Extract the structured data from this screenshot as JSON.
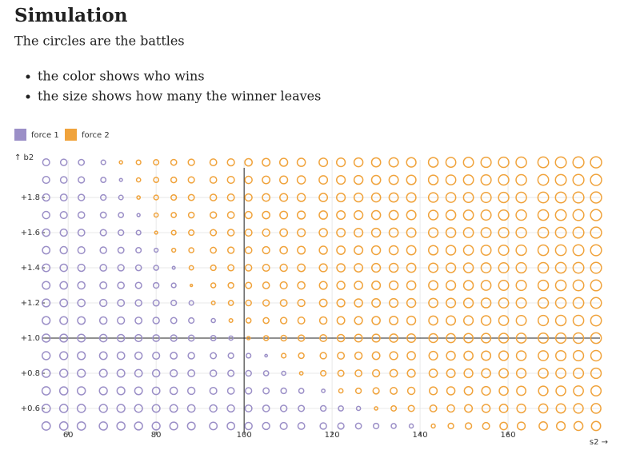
{
  "header": {
    "title": "Simulation",
    "subtitle": "The circles are the battles",
    "bullets": [
      "the color shows who wins",
      "the size shows how many the winner leaves"
    ]
  },
  "chart_data": {
    "type": "scatter",
    "x_label": "s2 →",
    "y_label": "↑ b2",
    "series": [
      {
        "name": "force 1",
        "color": "#9b8fc7"
      },
      {
        "name": "force 2",
        "color": "#f0a33c"
      }
    ],
    "x": [
      55,
      59,
      63,
      68,
      72,
      76,
      80,
      84,
      88,
      93,
      97,
      101,
      105,
      109,
      113,
      118,
      122,
      126,
      130,
      134,
      138,
      143,
      147,
      151,
      155,
      159,
      163,
      168,
      172,
      176,
      180
    ],
    "rows": [
      {
        "b2": 0.5,
        "winner": [
          1,
          1,
          1,
          1,
          1,
          1,
          1,
          1,
          1,
          1,
          1,
          1,
          1,
          1,
          1,
          1,
          1,
          1,
          1,
          1,
          1,
          2,
          2,
          2,
          2,
          2,
          2,
          2,
          2,
          2,
          2
        ],
        "left": [
          92,
          91,
          90,
          88,
          86,
          84,
          82,
          80,
          78,
          75,
          73,
          70,
          67,
          64,
          60,
          55,
          51,
          45,
          39,
          32,
          22,
          21,
          40,
          53,
          63,
          73,
          81,
          91,
          98,
          105,
          111
        ]
      },
      {
        "b2": 0.6,
        "winner": [
          1,
          1,
          1,
          1,
          1,
          1,
          1,
          1,
          1,
          1,
          1,
          1,
          1,
          1,
          1,
          1,
          1,
          1,
          2,
          2,
          2,
          2,
          2,
          2,
          2,
          2,
          2,
          2,
          2,
          2,
          2
        ],
        "left": [
          90,
          89,
          87,
          85,
          83,
          81,
          78,
          76,
          73,
          69,
          66,
          62,
          58,
          54,
          48,
          41,
          33,
          22,
          15,
          36,
          49,
          61,
          70,
          78,
          86,
          93,
          100,
          108,
          114,
          120,
          125
        ]
      },
      {
        "b2": 0.7,
        "winner": [
          1,
          1,
          1,
          1,
          1,
          1,
          1,
          1,
          1,
          1,
          1,
          1,
          1,
          1,
          1,
          1,
          2,
          2,
          2,
          2,
          2,
          2,
          2,
          2,
          2,
          2,
          2,
          2,
          2,
          2,
          2
        ],
        "left": [
          89,
          87,
          85,
          82,
          80,
          77,
          74,
          71,
          68,
          63,
          58,
          53,
          48,
          41,
          33,
          16,
          24,
          40,
          51,
          61,
          69,
          79,
          86,
          92,
          99,
          105,
          111,
          118,
          124,
          129,
          135
        ]
      },
      {
        "b2": 0.8,
        "winner": [
          1,
          1,
          1,
          1,
          1,
          1,
          1,
          1,
          1,
          1,
          1,
          1,
          1,
          1,
          2,
          2,
          2,
          2,
          2,
          2,
          2,
          2,
          2,
          2,
          2,
          2,
          2,
          2,
          2,
          2,
          2
        ],
        "left": [
          87,
          85,
          83,
          79,
          77,
          73,
          70,
          66,
          62,
          56,
          50,
          43,
          34,
          22,
          16,
          38,
          49,
          58,
          66,
          74,
          81,
          89,
          95,
          101,
          107,
          113,
          119,
          125,
          131,
          136,
          141
        ]
      },
      {
        "b2": 0.9,
        "winner": [
          1,
          1,
          1,
          1,
          1,
          1,
          1,
          1,
          1,
          1,
          1,
          1,
          1,
          2,
          2,
          2,
          2,
          2,
          2,
          2,
          2,
          2,
          2,
          2,
          2,
          2,
          2,
          2,
          2,
          2,
          2
        ],
        "left": [
          85,
          83,
          80,
          76,
          73,
          69,
          65,
          60,
          55,
          47,
          39,
          29,
          9,
          28,
          41,
          53,
          61,
          69,
          76,
          83,
          89,
          97,
          102,
          108,
          114,
          119,
          124,
          131,
          136,
          141,
          146
        ]
      },
      {
        "b2": 1.0,
        "winner": [
          1,
          1,
          1,
          1,
          1,
          1,
          1,
          1,
          1,
          1,
          1,
          2,
          2,
          2,
          2,
          2,
          2,
          2,
          2,
          2,
          2,
          2,
          2,
          2,
          2,
          2,
          2,
          2,
          2,
          2,
          2
        ],
        "left": [
          84,
          81,
          78,
          73,
          69,
          65,
          60,
          54,
          47,
          37,
          24,
          14,
          32,
          43,
          53,
          63,
          70,
          77,
          83,
          89,
          95,
          102,
          108,
          113,
          118,
          124,
          129,
          135,
          140,
          145,
          150
        ]
      },
      {
        "b2": 1.1,
        "winner": [
          1,
          1,
          1,
          1,
          1,
          1,
          1,
          1,
          1,
          1,
          2,
          2,
          2,
          2,
          2,
          2,
          2,
          2,
          2,
          2,
          2,
          2,
          2,
          2,
          2,
          2,
          2,
          2,
          2,
          2,
          2
        ],
        "left": [
          82,
          79,
          75,
          70,
          66,
          60,
          54,
          47,
          38,
          22,
          18,
          33,
          44,
          53,
          61,
          70,
          76,
          82,
          88,
          94,
          100,
          107,
          112,
          117,
          122,
          127,
          132,
          138,
          143,
          148,
          153
        ]
      },
      {
        "b2": 1.2,
        "winner": [
          1,
          1,
          1,
          1,
          1,
          1,
          1,
          1,
          1,
          2,
          2,
          2,
          2,
          2,
          2,
          2,
          2,
          2,
          2,
          2,
          2,
          2,
          2,
          2,
          2,
          2,
          2,
          2,
          2,
          2,
          2
        ],
        "left": [
          80,
          76,
          72,
          67,
          61,
          55,
          48,
          39,
          27,
          18,
          33,
          43,
          52,
          60,
          67,
          75,
          81,
          87,
          93,
          98,
          103,
          110,
          115,
          120,
          125,
          130,
          135,
          141,
          146,
          150,
          155
        ]
      },
      {
        "b2": 1.3,
        "winner": [
          1,
          1,
          1,
          1,
          1,
          1,
          1,
          1,
          2,
          2,
          2,
          2,
          2,
          2,
          2,
          2,
          2,
          2,
          2,
          2,
          2,
          2,
          2,
          2,
          2,
          2,
          2,
          2,
          2,
          2,
          2
        ],
        "left": [
          78,
          74,
          70,
          63,
          57,
          50,
          41,
          29,
          7,
          31,
          41,
          50,
          58,
          65,
          71,
          79,
          85,
          90,
          96,
          101,
          107,
          113,
          118,
          123,
          128,
          133,
          137,
          143,
          148,
          153,
          157
        ]
      },
      {
        "b2": 1.4,
        "winner": [
          1,
          1,
          1,
          1,
          1,
          1,
          1,
          1,
          2,
          2,
          2,
          2,
          2,
          2,
          2,
          2,
          2,
          2,
          2,
          2,
          2,
          2,
          2,
          2,
          2,
          2,
          2,
          2,
          2,
          2,
          2
        ],
        "left": [
          76,
          72,
          67,
          59,
          52,
          44,
          32,
          11,
          25,
          39,
          48,
          55,
          62,
          69,
          75,
          82,
          88,
          93,
          99,
          104,
          109,
          115,
          120,
          125,
          130,
          135,
          139,
          145,
          150,
          154,
          159
        ]
      },
      {
        "b2": 1.5,
        "winner": [
          1,
          1,
          1,
          1,
          1,
          1,
          1,
          2,
          2,
          2,
          2,
          2,
          2,
          2,
          2,
          2,
          2,
          2,
          2,
          2,
          2,
          2,
          2,
          2,
          2,
          2,
          2,
          2,
          2,
          2,
          2
        ],
        "left": [
          74,
          69,
          64,
          55,
          47,
          37,
          20,
          20,
          33,
          45,
          52,
          59,
          66,
          72,
          78,
          85,
          91,
          96,
          101,
          106,
          111,
          117,
          122,
          127,
          132,
          136,
          141,
          147,
          151,
          156,
          160
        ]
      },
      {
        "b2": 1.6,
        "winner": [
          1,
          1,
          1,
          1,
          1,
          1,
          2,
          2,
          2,
          2,
          2,
          2,
          2,
          2,
          2,
          2,
          2,
          2,
          2,
          2,
          2,
          2,
          2,
          2,
          2,
          2,
          2,
          2,
          2,
          2,
          2
        ],
        "left": [
          72,
          67,
          60,
          51,
          41,
          28,
          12,
          28,
          39,
          49,
          56,
          63,
          69,
          75,
          81,
          88,
          93,
          98,
          103,
          108,
          113,
          119,
          124,
          129,
          133,
          138,
          143,
          148,
          153,
          157,
          162
        ]
      },
      {
        "b2": 1.7,
        "winner": [
          1,
          1,
          1,
          1,
          1,
          1,
          2,
          2,
          2,
          2,
          2,
          2,
          2,
          2,
          2,
          2,
          2,
          2,
          2,
          2,
          2,
          2,
          2,
          2,
          2,
          2,
          2,
          2,
          2,
          2,
          2
        ],
        "left": [
          70,
          64,
          57,
          46,
          34,
          13,
          23,
          34,
          43,
          53,
          59,
          66,
          72,
          77,
          83,
          90,
          95,
          100,
          105,
          110,
          115,
          121,
          125,
          130,
          135,
          139,
          144,
          149,
          154,
          158,
          163
        ]
      },
      {
        "b2": 1.8,
        "winner": [
          1,
          1,
          1,
          1,
          1,
          2,
          2,
          2,
          2,
          2,
          2,
          2,
          2,
          2,
          2,
          2,
          2,
          2,
          2,
          2,
          2,
          2,
          2,
          2,
          2,
          2,
          2,
          2,
          2,
          2,
          2
        ],
        "left": [
          67,
          61,
          53,
          41,
          26,
          15,
          29,
          39,
          47,
          56,
          62,
          68,
          74,
          80,
          85,
          91,
          97,
          102,
          107,
          111,
          116,
          122,
          127,
          131,
          136,
          140,
          145,
          151,
          155,
          159,
          164
        ]
      },
      {
        "b2": 1.9,
        "winner": [
          1,
          1,
          1,
          1,
          1,
          2,
          2,
          2,
          2,
          2,
          2,
          2,
          2,
          2,
          2,
          2,
          2,
          2,
          2,
          2,
          2,
          2,
          2,
          2,
          2,
          2,
          2,
          2,
          2,
          2,
          2
        ],
        "left": [
          65,
          58,
          50,
          35,
          12,
          23,
          34,
          42,
          50,
          58,
          64,
          70,
          76,
          81,
          87,
          93,
          98,
          103,
          108,
          113,
          117,
          123,
          128,
          132,
          137,
          141,
          146,
          152,
          156,
          160,
          165
        ]
      },
      {
        "b2": 2.0,
        "winner": [
          1,
          1,
          1,
          1,
          2,
          2,
          2,
          2,
          2,
          2,
          2,
          2,
          2,
          2,
          2,
          2,
          2,
          2,
          2,
          2,
          2,
          2,
          2,
          2,
          2,
          2,
          2,
          2,
          2,
          2,
          2
        ],
        "left": [
          63,
          55,
          45,
          27,
          14,
          28,
          37,
          45,
          52,
          60,
          66,
          72,
          78,
          83,
          88,
          94,
          99,
          104,
          109,
          114,
          119,
          124,
          129,
          133,
          138,
          142,
          147,
          152,
          157,
          161,
          166
        ]
      }
    ],
    "xlim": [
      53.6,
      180.9
    ],
    "ylim": [
      0.468,
      2.014
    ],
    "xticks": [
      60,
      80,
      100,
      120,
      140,
      160
    ],
    "yticks": [
      {
        "value": 0.6,
        "label": "+0.6"
      },
      {
        "value": 0.8,
        "label": "+0.8"
      },
      {
        "value": 1.0,
        "label": "+1.0"
      },
      {
        "value": 1.2,
        "label": "+1.2"
      },
      {
        "value": 1.4,
        "label": "+1.4"
      },
      {
        "value": 1.6,
        "label": "+1.6"
      },
      {
        "value": 1.8,
        "label": "+1.8"
      }
    ],
    "x_rule": 100,
    "y_rule": 1.0,
    "grid": true
  }
}
